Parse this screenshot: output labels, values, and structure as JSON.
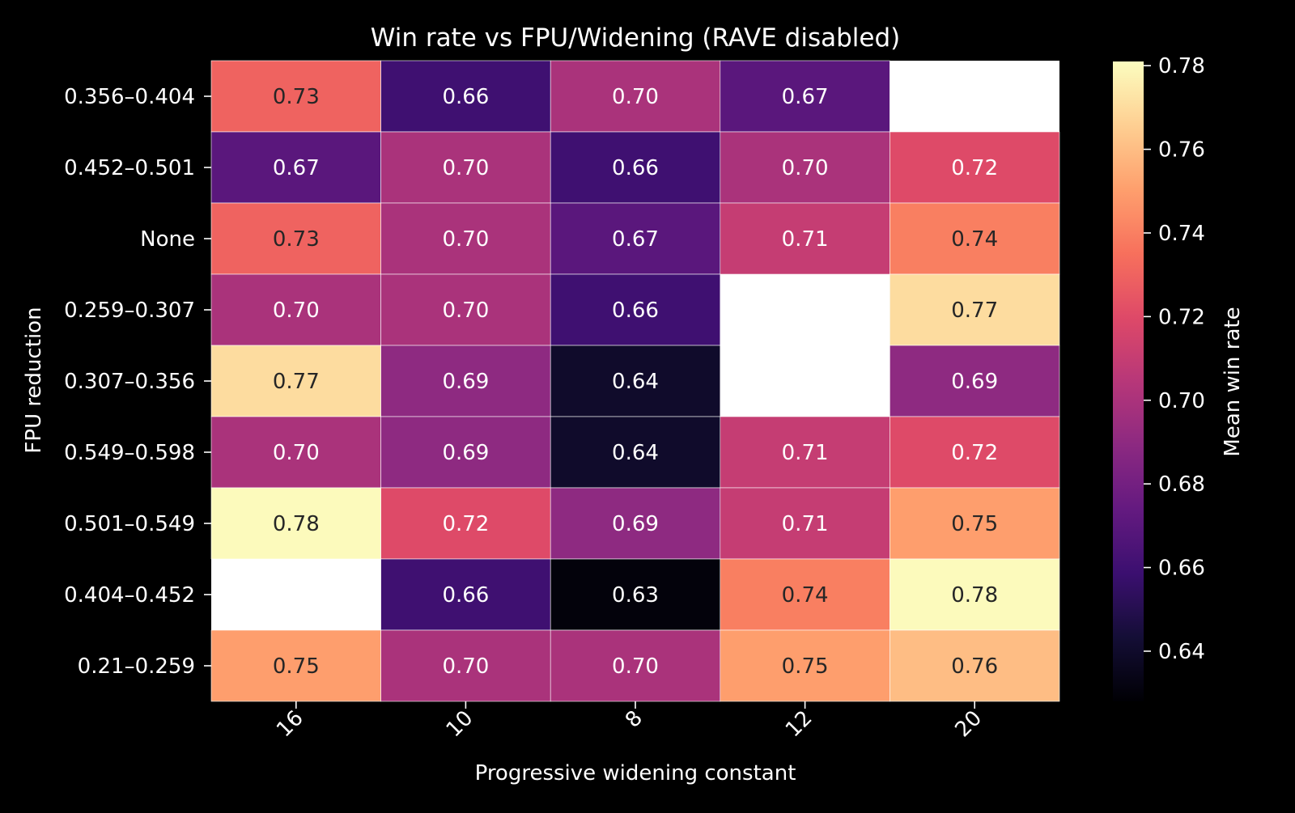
{
  "chart_data": {
    "type": "heatmap",
    "title": "Win rate vs FPU/Widening (RAVE disabled)",
    "xlabel": "Progressive widening constant",
    "ylabel": "FPU reduction",
    "x_categories": [
      "16",
      "10",
      "8",
      "12",
      "20"
    ],
    "y_categories": [
      "0.356–0.404",
      "0.452–0.501",
      "None",
      "0.259–0.307",
      "0.307–0.356",
      "0.549–0.598",
      "0.501–0.549",
      "0.404–0.452",
      "0.21–0.259"
    ],
    "values": [
      [
        0.73,
        0.66,
        0.7,
        0.67,
        null
      ],
      [
        0.67,
        0.7,
        0.66,
        0.7,
        0.72
      ],
      [
        0.73,
        0.7,
        0.67,
        0.71,
        0.74
      ],
      [
        0.7,
        0.7,
        0.66,
        null,
        0.77
      ],
      [
        0.77,
        0.69,
        0.64,
        null,
        0.69
      ],
      [
        0.7,
        0.69,
        0.64,
        0.71,
        0.72
      ],
      [
        0.78,
        0.72,
        0.69,
        0.71,
        0.75
      ],
      [
        null,
        0.66,
        0.63,
        0.74,
        0.78
      ],
      [
        0.75,
        0.7,
        0.7,
        0.75,
        0.76
      ]
    ],
    "cell_labels": [
      [
        "0.73",
        "0.66",
        "0.70",
        "0.67",
        ""
      ],
      [
        "0.67",
        "0.70",
        "0.66",
        "0.70",
        "0.72"
      ],
      [
        "0.73",
        "0.70",
        "0.67",
        "0.71",
        "0.74"
      ],
      [
        "0.70",
        "0.70",
        "0.66",
        "",
        "0.77"
      ],
      [
        "0.77",
        "0.69",
        "0.64",
        "",
        "0.69"
      ],
      [
        "0.70",
        "0.69",
        "0.64",
        "0.71",
        "0.72"
      ],
      [
        "0.78",
        "0.72",
        "0.69",
        "0.71",
        "0.75"
      ],
      [
        "",
        "0.66",
        "0.63",
        "0.74",
        "0.78"
      ],
      [
        "0.75",
        "0.70",
        "0.70",
        "0.75",
        "0.76"
      ]
    ],
    "colormap": "magma",
    "color_range": [
      0.628,
      0.781
    ],
    "colorbar": {
      "label": "Mean win rate",
      "ticks": [
        "0.64",
        "0.66",
        "0.68",
        "0.70",
        "0.72",
        "0.74",
        "0.76",
        "0.78"
      ]
    },
    "missing_color": "#ffffff",
    "background": "#000000",
    "text_color": "#ffffff",
    "cell_border_color": "#ffffff"
  }
}
